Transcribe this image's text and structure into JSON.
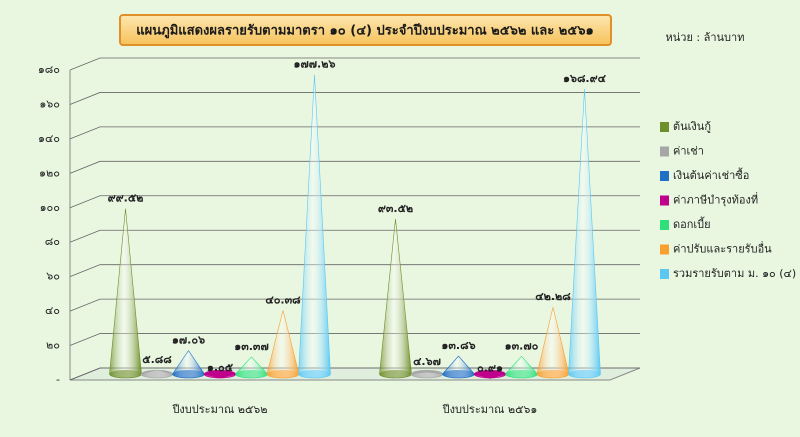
{
  "chart_data": {
    "type": "cone",
    "title": "แผนภูมิแสดงผลรายรับตามมาตรา ๑๐ (๔) ประจำปีงบประมาณ ๒๕๖๒ และ ๒๕๖๑",
    "unit_label": "หน่วย : ล้านบาท",
    "categories": [
      "ปีงบประมาณ ๒๕๖๒",
      "ปีงบประมาณ ๒๕๖๑"
    ],
    "ylim": [
      0,
      180
    ],
    "yticks": [
      {
        "value": 0,
        "label": "-"
      },
      {
        "value": 20,
        "label": "๒๐"
      },
      {
        "value": 40,
        "label": "๔๐"
      },
      {
        "value": 60,
        "label": "๖๐"
      },
      {
        "value": 80,
        "label": "๘๐"
      },
      {
        "value": 100,
        "label": "๑๐๐"
      },
      {
        "value": 120,
        "label": "๑๒๐"
      },
      {
        "value": 140,
        "label": "๑๔๐"
      },
      {
        "value": 160,
        "label": "๑๖๐"
      },
      {
        "value": 180,
        "label": "๑๘๐"
      }
    ],
    "grid": true,
    "legend": "right",
    "series": [
      {
        "name": "ต้นเงินกู้",
        "color": "#6f8f2a",
        "values": [
          99.52,
          93.52
        ],
        "value_labels": [
          "๙๙.๕๒",
          "๙๓.๕๒"
        ]
      },
      {
        "name": "ค่าเช่า",
        "color": "#a6a6a6",
        "values": [
          5.88,
          4.67
        ],
        "value_labels": [
          "๕.๘๘",
          "๔.๖๗"
        ]
      },
      {
        "name": "เงินต้นค่าเช่าซื้อ",
        "color": "#1f6fc4",
        "values": [
          17.06,
          13.86
        ],
        "value_labels": [
          "๑๗.๐๖",
          "๑๓.๘๖"
        ]
      },
      {
        "name": "ค่าภาษีบำรุงท้องที่",
        "color": "#c0008c",
        "values": [
          1.05,
          0.91
        ],
        "value_labels": [
          "๑.๐๕",
          "๐.๙๑"
        ]
      },
      {
        "name": "ดอกเบี้ย",
        "color": "#2fe07a",
        "values": [
          13.37,
          13.7
        ],
        "value_labels": [
          "๑๓.๓๗",
          "๑๓.๗๐"
        ]
      },
      {
        "name": "ค่าปรับและรายรับอื่น",
        "color": "#f7a030",
        "values": [
          40.38,
          42.28
        ],
        "value_labels": [
          "๔๐.๓๘",
          "๔๒.๒๘"
        ]
      },
      {
        "name": "รวมรายรับตาม ม. ๑๐ (๔)",
        "color": "#5cc8f2",
        "values": [
          177.26,
          168.94
        ],
        "value_labels": [
          "๑๗๗.๒๖",
          "๑๖๘.๙๔"
        ]
      }
    ]
  }
}
